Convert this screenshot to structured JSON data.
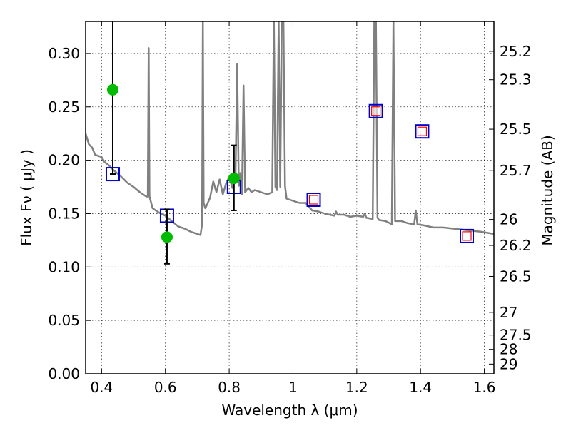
{
  "chart_data": {
    "type": "scatter",
    "title": "",
    "xlabel": "Wavelength  λ (μm)",
    "ylabel": "Flux  Fν  ( μJy )",
    "y2label": "Magnitude (AB)",
    "xlim": [
      0.35,
      1.63
    ],
    "ylim": [
      0.0,
      0.33
    ],
    "grid": true,
    "x_ticks": [
      "0.4",
      "0.6",
      "0.8",
      "1",
      "1.2",
      "1.4",
      "1.6"
    ],
    "x_tick_values": [
      0.4,
      0.6,
      0.8,
      1.0,
      1.2,
      1.4,
      1.6
    ],
    "y_ticks": [
      "0.00",
      "0.05",
      "0.10",
      "0.15",
      "0.20",
      "0.25",
      "0.30"
    ],
    "y_tick_values": [
      0.0,
      0.05,
      0.1,
      0.15,
      0.2,
      0.25,
      0.3
    ],
    "y2_ticks": [
      {
        "label": "25.2",
        "mag": 25.2
      },
      {
        "label": "25.3",
        "mag": 25.3
      },
      {
        "label": "25.5",
        "mag": 25.5
      },
      {
        "label": "25.7",
        "mag": 25.7
      },
      {
        "label": "26",
        "mag": 26.0
      },
      {
        "label": "26.2",
        "mag": 26.2
      },
      {
        "label": "26.5",
        "mag": 26.5
      },
      {
        "label": "27",
        "mag": 27.0
      },
      {
        "label": "27.5",
        "mag": 27.5
      },
      {
        "label": "28",
        "mag": 28.0
      },
      {
        "label": "29",
        "mag": 29.0
      }
    ],
    "series": [
      {
        "kind": "model_spectrum",
        "color": "#808080",
        "x": [
          0.35,
          0.36,
          0.37,
          0.38,
          0.39,
          0.4,
          0.41,
          0.42,
          0.43,
          0.44,
          0.46,
          0.48,
          0.5,
          0.52,
          0.54,
          0.545,
          0.5475,
          0.55,
          0.56,
          0.58,
          0.6,
          0.62,
          0.64,
          0.66,
          0.68,
          0.7,
          0.71,
          0.715,
          0.7175,
          0.72,
          0.725,
          0.73,
          0.74,
          0.75,
          0.76,
          0.77,
          0.78,
          0.79,
          0.8,
          0.81,
          0.82,
          0.825,
          0.83,
          0.835,
          0.84,
          0.845,
          0.85,
          0.86,
          0.87,
          0.88,
          0.9,
          0.92,
          0.935,
          0.94,
          0.945,
          0.95,
          0.955,
          0.96,
          0.965,
          0.97,
          0.975,
          0.98,
          1.0,
          1.02,
          1.04,
          1.06,
          1.08,
          1.1,
          1.13,
          1.135,
          1.14,
          1.16,
          1.18,
          1.2,
          1.22,
          1.225,
          1.23,
          1.25,
          1.255,
          1.26,
          1.265,
          1.27,
          1.29,
          1.31,
          1.315,
          1.32,
          1.34,
          1.36,
          1.38,
          1.385,
          1.39,
          1.41,
          1.44,
          1.47,
          1.5,
          1.53,
          1.56,
          1.59,
          1.63
        ],
        "y": [
          0.225,
          0.215,
          0.212,
          0.205,
          0.204,
          0.203,
          0.198,
          0.196,
          0.193,
          0.19,
          0.185,
          0.179,
          0.175,
          0.17,
          0.166,
          0.166,
          0.305,
          0.166,
          0.155,
          0.151,
          0.148,
          0.143,
          0.138,
          0.136,
          0.133,
          0.131,
          0.13,
          0.14,
          0.33,
          0.16,
          0.155,
          0.158,
          0.165,
          0.18,
          0.17,
          0.182,
          0.168,
          0.178,
          0.184,
          0.174,
          0.186,
          0.29,
          0.176,
          0.188,
          0.168,
          0.27,
          0.17,
          0.174,
          0.17,
          0.172,
          0.17,
          0.168,
          0.17,
          0.33,
          0.175,
          0.172,
          0.33,
          0.175,
          0.33,
          0.33,
          0.176,
          0.164,
          0.162,
          0.16,
          0.16,
          0.153,
          0.152,
          0.15,
          0.148,
          0.152,
          0.149,
          0.149,
          0.147,
          0.148,
          0.147,
          0.15,
          0.146,
          0.145,
          0.33,
          0.33,
          0.146,
          0.144,
          0.143,
          0.14,
          0.33,
          0.143,
          0.143,
          0.141,
          0.14,
          0.153,
          0.14,
          0.139,
          0.137,
          0.137,
          0.136,
          0.135,
          0.134,
          0.133,
          0.131
        ]
      },
      {
        "kind": "model_photometry",
        "marker": "open-square",
        "color": "#0000cc",
        "x": [
          0.435,
          0.605,
          0.815,
          1.065,
          1.26,
          1.405,
          1.545
        ],
        "y": [
          0.187,
          0.148,
          0.175,
          0.163,
          0.246,
          0.227,
          0.129
        ]
      },
      {
        "kind": "observed_photometry_red",
        "marker": "small-open-square",
        "color": "#ff0000",
        "x": [
          1.065,
          1.26,
          1.405,
          1.545
        ],
        "y": [
          0.163,
          0.246,
          0.227,
          0.129
        ]
      },
      {
        "kind": "observed_photometry_green",
        "marker": "filled-circle",
        "color": "#00bb00",
        "x": [
          0.435,
          0.605,
          0.815
        ],
        "y": [
          0.266,
          0.128,
          0.183
        ],
        "err_low": [
          0.187,
          0.103,
          0.153
        ],
        "err_high": [
          0.33,
          0.154,
          0.214
        ]
      }
    ]
  }
}
